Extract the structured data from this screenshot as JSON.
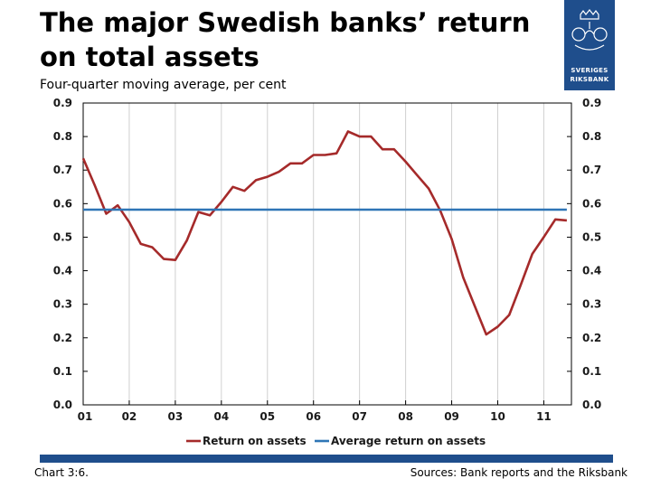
{
  "title": "The major Swedish banks’ return on total assets",
  "subtitle": "Four-quarter moving average, per cent",
  "logo": {
    "line1": "SVERIGES",
    "line2": "RIKSBANK"
  },
  "footer": {
    "left": "Chart 3:6.",
    "right": "Sources: Bank reports and the Riksbank"
  },
  "colors": {
    "brand": "#1f4e8c",
    "series_return": "#a52a2a",
    "series_average": "#2e75b6",
    "grid": "#d0d0d0"
  },
  "chart_data": {
    "type": "line",
    "ylim": [
      0.0,
      0.9
    ],
    "yticks": [
      "0.9",
      "0.8",
      "0.7",
      "0.6",
      "0.5",
      "0.4",
      "0.3",
      "0.2",
      "0.1",
      "0.0"
    ],
    "yticks_right": [
      "0.9",
      "0.8",
      "0.7",
      "0.6",
      "0.5",
      "0.4",
      "0.3",
      "0.2",
      "0.1",
      "0.0"
    ],
    "xticks": [
      "01",
      "02",
      "03",
      "04",
      "05",
      "06",
      "07",
      "08",
      "09",
      "10",
      "11"
    ],
    "grid": "vertical",
    "legend_position": "bottom",
    "series": [
      {
        "name": "Return on assets",
        "color": "#a52a2a",
        "x": [
          2001.0,
          2001.25,
          2001.5,
          2001.75,
          2002.0,
          2002.25,
          2002.5,
          2002.75,
          2003.0,
          2003.25,
          2003.5,
          2003.75,
          2004.0,
          2004.25,
          2004.5,
          2004.75,
          2005.0,
          2005.25,
          2005.5,
          2005.75,
          2006.0,
          2006.25,
          2006.5,
          2006.75,
          2007.0,
          2007.25,
          2007.5,
          2007.75,
          2008.0,
          2008.25,
          2008.5,
          2008.75,
          2009.0,
          2009.25,
          2009.5,
          2009.75,
          2010.0,
          2010.25,
          2010.5,
          2010.75,
          2011.0,
          2011.25,
          2011.5
        ],
        "values": [
          0.735,
          0.655,
          0.57,
          0.595,
          0.545,
          0.48,
          0.47,
          0.435,
          0.432,
          0.49,
          0.575,
          0.565,
          0.605,
          0.65,
          0.638,
          0.67,
          0.68,
          0.695,
          0.72,
          0.72,
          0.745,
          0.745,
          0.75,
          0.815,
          0.8,
          0.8,
          0.762,
          0.762,
          0.725,
          0.685,
          0.645,
          0.58,
          0.495,
          0.38,
          0.295,
          0.21,
          0.233,
          0.268,
          0.358,
          0.45,
          0.5,
          0.553,
          0.55
        ]
      },
      {
        "name": "Average return on assets",
        "color": "#2e75b6",
        "x": [
          2001.0,
          2011.5
        ],
        "values": [
          0.582,
          0.582
        ]
      }
    ]
  }
}
